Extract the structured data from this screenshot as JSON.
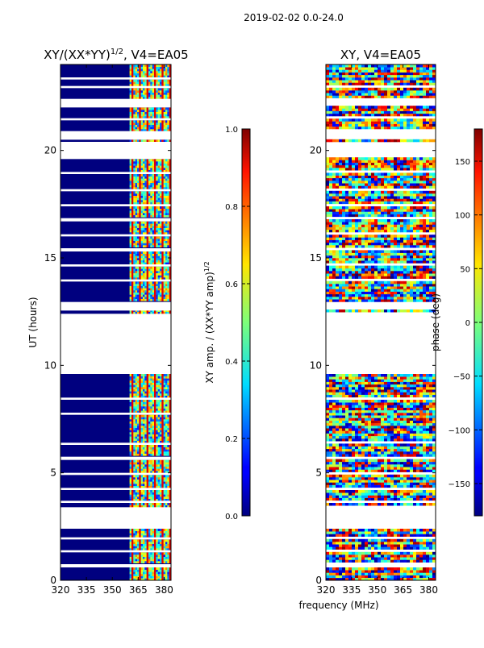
{
  "suptitle": "2019-02-02 0.0-24.0",
  "shared_xlabel": "frequency (MHz)",
  "chart_data": [
    {
      "type": "heatmap",
      "title_main": "XY/(XX*YY)",
      "title_sup": "1/2",
      "title_rest": ", V4=EA05",
      "ylabel": "UT (hours)",
      "x_ticks": [
        320,
        335,
        350,
        365,
        380
      ],
      "x_tick_labels": [
        "320",
        "335",
        "350",
        "365",
        "380"
      ],
      "xlim": [
        320,
        384
      ],
      "y_ticks": [
        0,
        5,
        10,
        15,
        20
      ],
      "y_tick_labels": [
        "0",
        "5",
        "10",
        "15",
        "20"
      ],
      "ylim": [
        0,
        24
      ],
      "colormap": "jet",
      "flagged_channel_band_mhz": [
        360,
        384
      ],
      "colorbar": {
        "label_main": "XY amp. / (XX*YY amp)",
        "label_sup": "1/2",
        "range": [
          0.0,
          1.0
        ],
        "ticks": [
          0.0,
          0.2,
          0.4,
          0.6,
          0.8,
          1.0
        ],
        "tick_labels": [
          "0.0",
          "0.2",
          "0.4",
          "0.6",
          "0.8",
          "1.0"
        ]
      }
    },
    {
      "type": "heatmap",
      "title": "XY, V4=EA05",
      "x_ticks": [
        320,
        335,
        350,
        365,
        380
      ],
      "x_tick_labels": [
        "320",
        "335",
        "350",
        "365",
        "380"
      ],
      "xlim": [
        320,
        384
      ],
      "y_ticks": [
        0,
        5,
        10,
        15,
        20
      ],
      "y_tick_labels": [
        "0",
        "5",
        "10",
        "15",
        "20"
      ],
      "ylim": [
        0,
        24
      ],
      "colormap": "jet",
      "colorbar": {
        "label": "phase (deg)",
        "range": [
          -180,
          180
        ],
        "ticks": [
          -150,
          -100,
          -50,
          0,
          50,
          100,
          150
        ],
        "tick_labels": [
          "−150",
          "−100",
          "−50",
          "0",
          "50",
          "100",
          "150"
        ]
      }
    }
  ],
  "data_gaps_ut_hours": [
    [
      0.6,
      0.75
    ],
    [
      1.3,
      1.4
    ],
    [
      1.9,
      2.0
    ],
    [
      2.4,
      3.4
    ],
    [
      3.6,
      3.7
    ],
    [
      4.2,
      4.3
    ],
    [
      4.9,
      5.0
    ],
    [
      5.6,
      5.75
    ],
    [
      6.3,
      6.4
    ],
    [
      7.7,
      7.8
    ],
    [
      8.4,
      8.5
    ],
    [
      9.6,
      12.4
    ],
    [
      12.55,
      12.95
    ],
    [
      13.9,
      14.0
    ],
    [
      14.6,
      14.7
    ],
    [
      15.3,
      15.45
    ],
    [
      16.0,
      16.1
    ],
    [
      16.7,
      16.85
    ],
    [
      17.4,
      17.5
    ],
    [
      18.1,
      18.2
    ],
    [
      18.9,
      19.0
    ],
    [
      19.6,
      20.4
    ],
    [
      20.5,
      20.9
    ],
    [
      21.4,
      21.5
    ],
    [
      22.0,
      22.4
    ],
    [
      22.9,
      23.0
    ],
    [
      23.3,
      23.4
    ]
  ]
}
